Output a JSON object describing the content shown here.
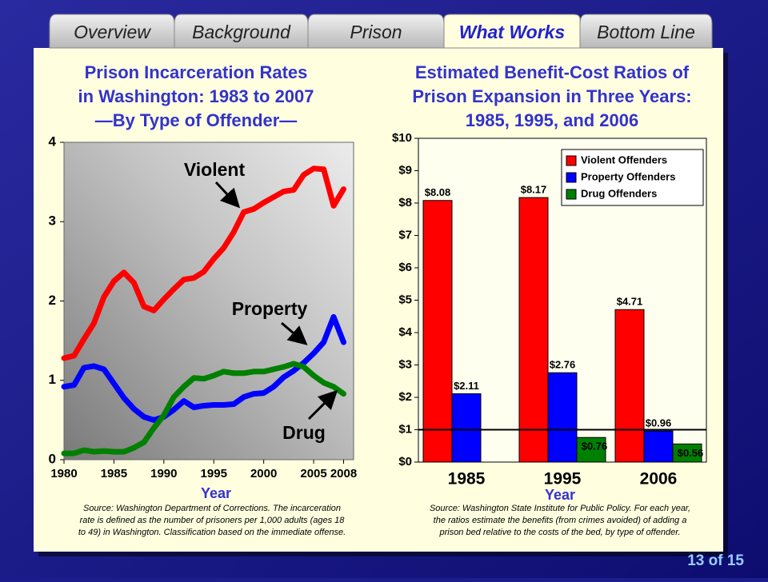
{
  "tabs": [
    "Overview",
    "Background",
    "Prison",
    "What Works",
    "Bottom Line"
  ],
  "active_tab": 3,
  "page_number": "13 of 15",
  "chart_data": [
    {
      "type": "line",
      "title": [
        "Prison Incarceration Rates",
        "in Washington: 1983 to 2007",
        "—By Type of Offender—"
      ],
      "x": [
        1980,
        1981,
        1982,
        1983,
        1984,
        1985,
        1986,
        1987,
        1988,
        1989,
        1990,
        1991,
        1992,
        1993,
        1994,
        1995,
        1996,
        1997,
        1998,
        1999,
        2000,
        2001,
        2002,
        2003,
        2004,
        2005,
        2006,
        2007,
        2008
      ],
      "series": [
        {
          "name": "Violent",
          "color": "#ff0000",
          "values": [
            1.28,
            1.31,
            1.52,
            1.72,
            2.05,
            2.25,
            2.36,
            2.23,
            1.93,
            1.88,
            2.02,
            2.15,
            2.27,
            2.29,
            2.37,
            2.53,
            2.67,
            2.87,
            3.12,
            3.16,
            3.24,
            3.31,
            3.38,
            3.4,
            3.59,
            3.67,
            3.66,
            3.2,
            3.41
          ]
        },
        {
          "name": "Property",
          "color": "#0000ff",
          "values": [
            0.92,
            0.94,
            1.16,
            1.18,
            1.14,
            0.96,
            0.78,
            0.64,
            0.54,
            0.5,
            0.54,
            0.63,
            0.74,
            0.66,
            0.68,
            0.69,
            0.69,
            0.7,
            0.79,
            0.83,
            0.84,
            0.92,
            1.04,
            1.12,
            1.22,
            1.34,
            1.48,
            1.8,
            1.48
          ]
        },
        {
          "name": "Drug",
          "color": "#008000",
          "values": [
            0.08,
            0.08,
            0.12,
            0.1,
            0.11,
            0.1,
            0.1,
            0.15,
            0.22,
            0.4,
            0.56,
            0.79,
            0.92,
            1.03,
            1.02,
            1.06,
            1.11,
            1.09,
            1.09,
            1.11,
            1.11,
            1.14,
            1.17,
            1.21,
            1.17,
            1.06,
            0.97,
            0.92,
            0.83
          ]
        }
      ],
      "xlim": [
        1980,
        2009
      ],
      "xticks": [
        1980,
        1985,
        1990,
        1995,
        2000,
        2005,
        2008
      ],
      "ylim": [
        0,
        4
      ],
      "yticks": [
        0,
        1,
        2,
        3,
        4
      ],
      "xlabel": "Year",
      "annotations": [
        "Violent",
        "Property",
        "Drug"
      ],
      "source": [
        "Source: Washington Department of Corrections.  The incarceration",
        "rate is defined as the number of prisoners per 1,000 adults (ages 18",
        "to 49) in Washington.  Classification based on the immediate offense."
      ]
    },
    {
      "type": "bar",
      "title": [
        "Estimated Benefit-Cost Ratios of",
        "Prison Expansion in Three Years:",
        "1985, 1995, and 2006"
      ],
      "categories": [
        "1985",
        "1995",
        "2006"
      ],
      "series": [
        {
          "name": "Violent Offenders",
          "color": "#ff0000",
          "values": [
            8.08,
            8.17,
            4.71
          ],
          "value_labels": [
            "$8.08",
            "$8.17",
            "$4.71"
          ]
        },
        {
          "name": "Property Offenders",
          "color": "#0000ff",
          "values": [
            2.11,
            2.76,
            0.96
          ],
          "value_labels": [
            "$2.11",
            "$2.76",
            "$0.96"
          ]
        },
        {
          "name": "Drug Offenders",
          "color": "#008000",
          "values": [
            null,
            0.76,
            0.56
          ],
          "value_labels": [
            null,
            "$0.76",
            "$0.56"
          ]
        }
      ],
      "ylim": [
        0,
        10
      ],
      "yticks": [
        {
          "value": 0,
          "label": "$0"
        },
        {
          "value": 1,
          "label": "$1"
        },
        {
          "value": 2,
          "label": "$2"
        },
        {
          "value": 3,
          "label": "$3"
        },
        {
          "value": 4,
          "label": "$4"
        },
        {
          "value": 5,
          "label": "$5"
        },
        {
          "value": 6,
          "label": "$6"
        },
        {
          "value": 7,
          "label": "$7"
        },
        {
          "value": 8,
          "label": "$8"
        },
        {
          "value": 9,
          "label": "$9"
        },
        {
          "value": 10,
          "label": "$10"
        }
      ],
      "hline": 1,
      "legend": "upper right",
      "xlabel": "Year",
      "source": [
        "Source: Washington State Institute for Public Policy.  For each year,",
        "the ratios estimate the benefits (from crimes avoided) of adding a",
        "prison bed relative to the costs of the bed, by type of offender."
      ]
    }
  ]
}
